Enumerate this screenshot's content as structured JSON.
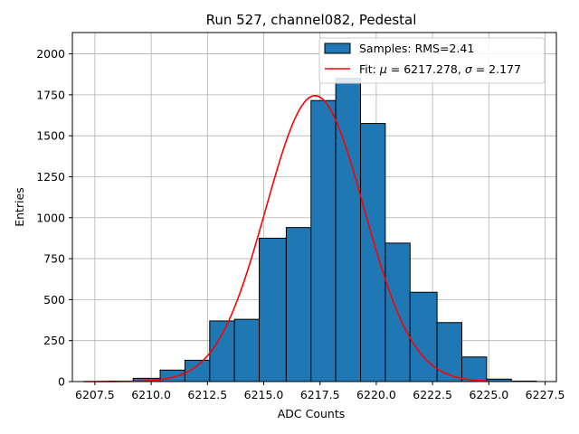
{
  "chart_data": {
    "type": "bar",
    "title": "Run 527, channel082, Pedestal",
    "xlabel": "ADC Counts",
    "ylabel": "Entries",
    "xlim": [
      6206.5,
      6228.0
    ],
    "ylim": [
      0,
      2130
    ],
    "xticks": [
      6207.5,
      6210.0,
      6212.5,
      6215.0,
      6217.5,
      6220.0,
      6222.5,
      6225.0,
      6227.5
    ],
    "xtick_labels": [
      "6207.5",
      "6210.0",
      "6212.5",
      "6215.0",
      "6217.5",
      "6220.0",
      "6222.5",
      "6225.0",
      "6227.5"
    ],
    "yticks": [
      0,
      250,
      500,
      750,
      1000,
      1250,
      1500,
      1750,
      2000
    ],
    "ytick_labels": [
      "0",
      "250",
      "500",
      "750",
      "1000",
      "1250",
      "1500",
      "1750",
      "2000"
    ],
    "grid": true,
    "legend_position": "top-right",
    "bars": {
      "name": "Samples: RMS=2.41",
      "color": "#1f77b4",
      "edgecolor": "#000000",
      "bin_edges": [
        6207.0,
        6208.1,
        6209.2,
        6210.4,
        6211.5,
        6212.6,
        6213.7,
        6214.8,
        6216.0,
        6217.1,
        6218.2,
        6219.3,
        6220.4,
        6221.5,
        6222.7,
        6223.8,
        6224.9,
        6226.0,
        6227.1
      ],
      "counts": [
        0,
        3,
        20,
        70,
        130,
        370,
        380,
        875,
        940,
        1715,
        1850,
        1575,
        845,
        545,
        360,
        150,
        15,
        3
      ]
    },
    "fit": {
      "name": "Fit: μ = 6217.278, σ = 2.177",
      "legend_label_prefix": "Fit: ",
      "legend_mu_symbol": "μ",
      "legend_mu_value": " = 6217.278, ",
      "legend_sigma_symbol": "σ",
      "legend_sigma_value": " = 2.177",
      "color": "#ff0000",
      "mu": 6217.278,
      "sigma": 2.177,
      "amplitude": 1745,
      "x_range": [
        6207.0,
        6225.0
      ]
    }
  }
}
